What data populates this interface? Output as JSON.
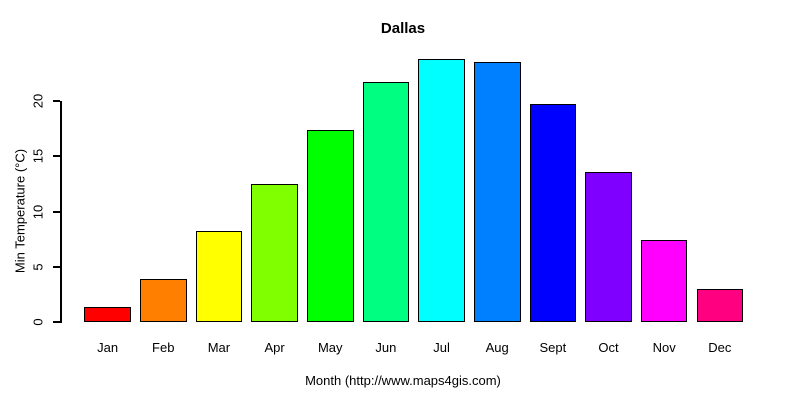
{
  "chart_data": {
    "type": "bar",
    "title": "Dallas",
    "xlabel": "Month (http://www.maps4gis.com)",
    "ylabel": "Min Temperature (°C)",
    "categories": [
      "Jan",
      "Feb",
      "Mar",
      "Apr",
      "May",
      "Jun",
      "Jul",
      "Aug",
      "Sept",
      "Oct",
      "Nov",
      "Dec"
    ],
    "values": [
      1.4,
      3.9,
      8.2,
      12.5,
      17.4,
      21.7,
      23.8,
      23.5,
      19.7,
      13.6,
      7.4,
      3.0
    ],
    "bar_colors": [
      "#FF0000",
      "#FF8000",
      "#FFFF00",
      "#80FF00",
      "#00FF00",
      "#00FF80",
      "#00FFFF",
      "#0080FF",
      "#0000FF",
      "#8000FF",
      "#FF00FF",
      "#FF0080"
    ],
    "yticks": [
      0,
      5,
      10,
      15,
      20
    ],
    "ylim": [
      0,
      24
    ],
    "bar_border_color": "#000000",
    "text_color": "#000000",
    "background_color": "#FFFFFF",
    "grid": false,
    "legend_position": "none"
  }
}
